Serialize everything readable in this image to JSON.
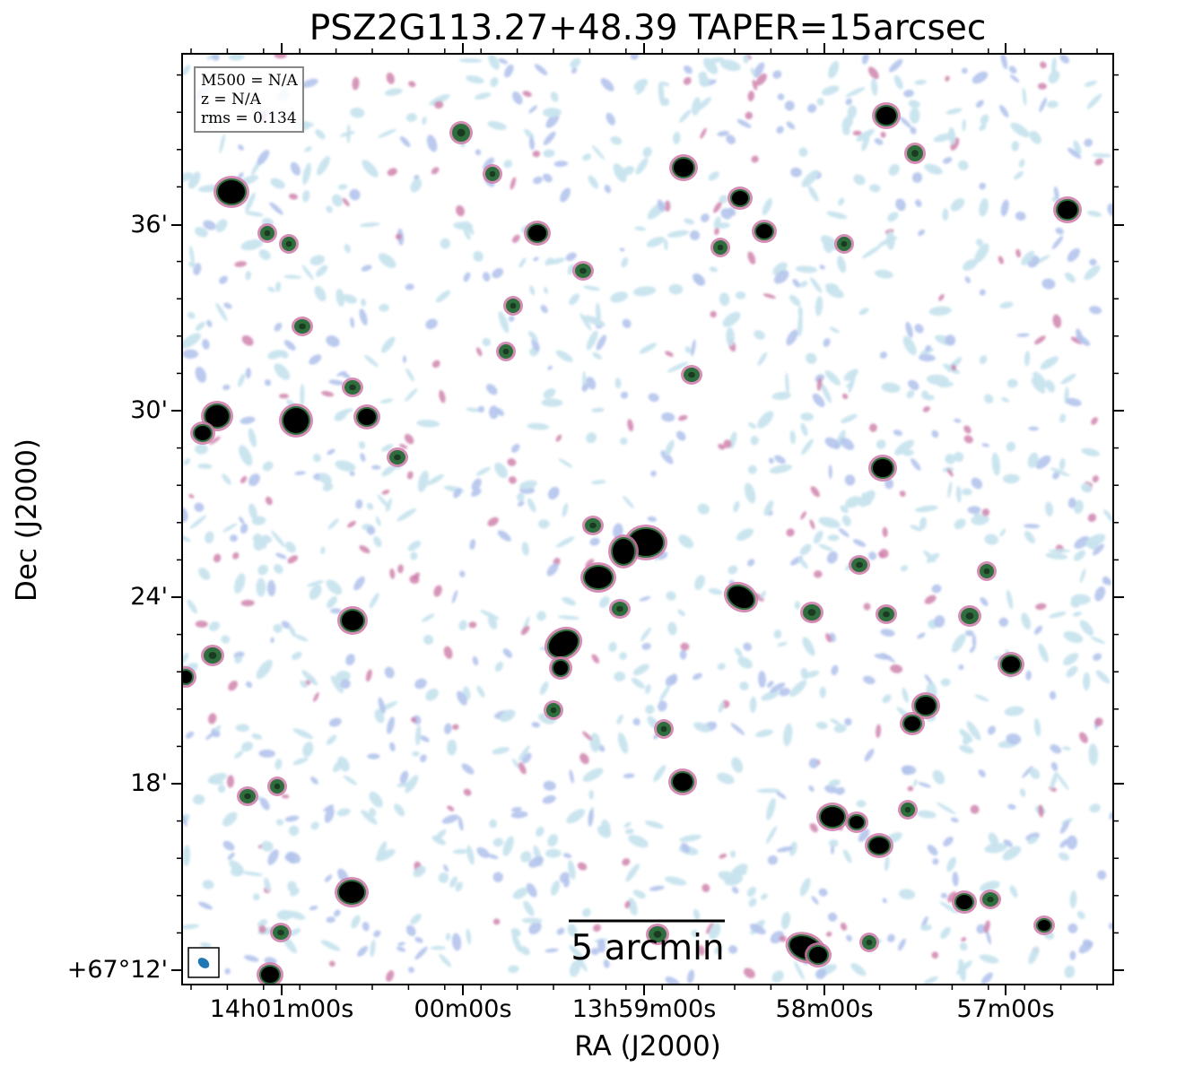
{
  "title": "PSZ2G113.27+48.39 TAPER=15arcsec",
  "xaxis_label": "RA (J2000)",
  "yaxis_label": "Dec (J2000)",
  "x_tick_labels": [
    "14h01m00s",
    "00m00s",
    "13h59m00s",
    "58m00s",
    "57m00s"
  ],
  "y_tick_labels": [
    "+67°12'",
    "18'",
    "24'",
    "30'",
    "36'"
  ],
  "info": {
    "m500": "M500 = N/A",
    "z": "z = N/A",
    "rms": "rms = 0.134"
  },
  "scalebar_label": "5 arcmin",
  "colors": {
    "faint": "#c8e4ee",
    "low": "#b4c4ec",
    "mid": "#cc7aa8",
    "high": "#2e6e3c",
    "bright": "#000000",
    "beam": "#1f77b4"
  }
}
